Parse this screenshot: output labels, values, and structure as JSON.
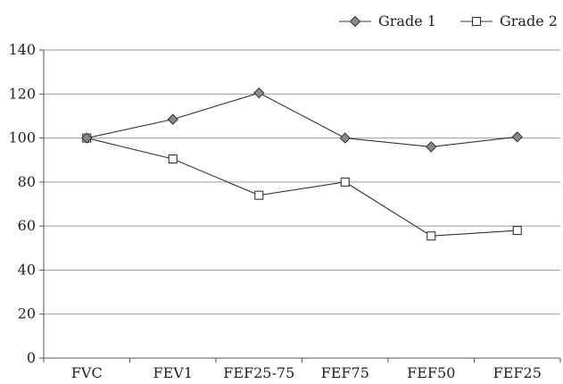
{
  "chart_data": {
    "type": "line",
    "title": "",
    "xlabel": "",
    "ylabel": "",
    "categories": [
      "FVC",
      "FEV1",
      "FEF25-75",
      "FEF75",
      "FEF50",
      "FEF25"
    ],
    "ylim": [
      0,
      140
    ],
    "yticks": [
      0,
      20,
      40,
      60,
      80,
      100,
      120,
      140
    ],
    "grid": true,
    "legend_position": "top-right",
    "series": [
      {
        "name": "Grade 1",
        "marker": "diamond",
        "marker_color": "#888888",
        "values": [
          100,
          108.5,
          120.5,
          100,
          96,
          100.5
        ]
      },
      {
        "name": "Grade 2",
        "marker": "square",
        "marker_color": "#ffffff",
        "values": [
          100,
          90.5,
          74,
          80,
          55.5,
          58
        ]
      }
    ]
  }
}
